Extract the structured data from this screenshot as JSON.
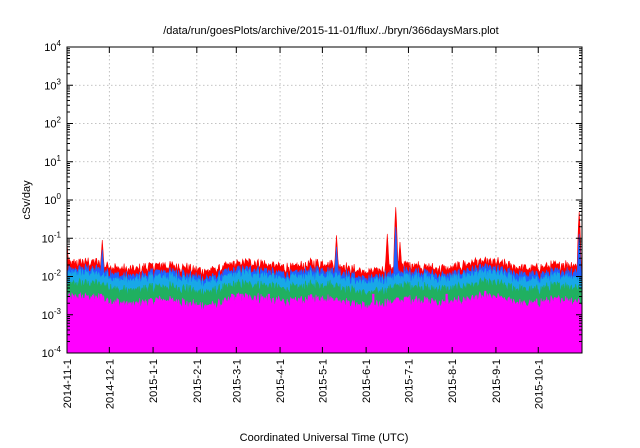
{
  "chart_data": {
    "type": "area",
    "title": "/data/run/goesPlots/archive/2015-11-01/flux/../bryn/366daysMars.plot",
    "xlabel": "Coordinated Universal Time (UTC)",
    "ylabel": "cSv/day",
    "yscale": "log",
    "ylim": [
      0.0001,
      10000
    ],
    "xlim": [
      "2014-11-01",
      "2015-11-01"
    ],
    "grid": true,
    "x_ticks": [
      "2014-11-1",
      "2014-12-1",
      "2015-1-1",
      "2015-2-1",
      "2015-3-1",
      "2015-4-1",
      "2015-5-1",
      "2015-6-1",
      "2015-7-1",
      "2015-8-1",
      "2015-9-1",
      "2015-10-1"
    ],
    "y_ticks": [
      {
        "value": 0.0001,
        "base": "10",
        "exp": "-4"
      },
      {
        "value": 0.001,
        "base": "10",
        "exp": "-3"
      },
      {
        "value": 0.01,
        "base": "10",
        "exp": "-2"
      },
      {
        "value": 0.1,
        "base": "10",
        "exp": "-1"
      },
      {
        "value": 1,
        "base": "10",
        "exp": "0"
      },
      {
        "value": 10,
        "base": "10",
        "exp": "1"
      },
      {
        "value": 100,
        "base": "10",
        "exp": "2"
      },
      {
        "value": 1000,
        "base": "10",
        "exp": "3"
      },
      {
        "value": 10000,
        "base": "10",
        "exp": "4"
      }
    ],
    "series": [
      {
        "color": "#ff0000",
        "base": 0.018,
        "spikes": [
          [
            "2014-11-01",
            0.08
          ],
          [
            "2014-11-26",
            0.09
          ],
          [
            "2015-05-11",
            0.12
          ],
          [
            "2015-06-16",
            0.13
          ],
          [
            "2015-06-22",
            0.65
          ],
          [
            "2015-06-25",
            0.08
          ],
          [
            "2015-10-30",
            0.5
          ]
        ]
      },
      {
        "color": "#1f5fff",
        "base": 0.012,
        "spikes": [
          [
            "2014-11-26",
            0.05
          ],
          [
            "2015-05-11",
            0.06
          ],
          [
            "2015-06-22",
            0.2
          ],
          [
            "2015-10-30",
            0.13
          ]
        ]
      },
      {
        "color": "#18a8e8",
        "base": 0.009,
        "spikes": []
      },
      {
        "color": "#20b060",
        "base": 0.005,
        "spikes": []
      },
      {
        "color": "#ff00ff",
        "base": 0.0022,
        "dips": [
          "2014-11-25",
          "2015-02-26",
          "2015-03-02",
          "2015-03-04",
          "2015-03-24",
          "2015-06-06",
          "2015-07-28"
        ]
      }
    ]
  }
}
